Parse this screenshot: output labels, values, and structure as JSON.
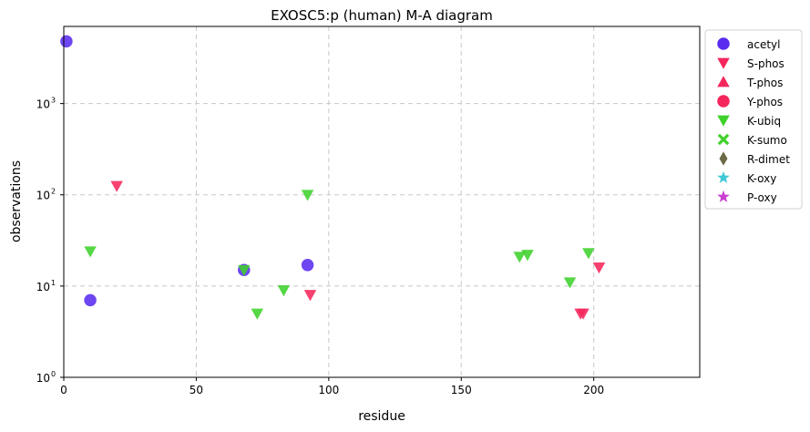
{
  "chart_data": {
    "type": "scatter",
    "title": "EXOSC5:p (human) M-A diagram",
    "xlabel": "residue",
    "ylabel": "observations",
    "xlim": [
      0,
      240
    ],
    "ylim": [
      1,
      7000
    ],
    "yscale": "log",
    "grid": true,
    "legend_position": "outside-top-right",
    "xticks": [
      0,
      50,
      100,
      150,
      200
    ],
    "yticks": [
      {
        "value": 1,
        "label": "10",
        "exp": "0"
      },
      {
        "value": 10,
        "label": "10",
        "exp": "1"
      },
      {
        "value": 100,
        "label": "10",
        "exp": "2"
      },
      {
        "value": 1000,
        "label": "10",
        "exp": "3"
      }
    ],
    "series": [
      {
        "name": "acetyl",
        "marker": "circle",
        "color": "#5a2cf0",
        "points": [
          {
            "x": 1,
            "y": 4800
          },
          {
            "x": 10,
            "y": 7
          },
          {
            "x": 68,
            "y": 15
          },
          {
            "x": 92,
            "y": 17
          }
        ]
      },
      {
        "name": "S-phos",
        "marker": "triangle-down",
        "color": "#f5265c",
        "points": [
          {
            "x": 20,
            "y": 125
          },
          {
            "x": 93,
            "y": 8
          },
          {
            "x": 195,
            "y": 5
          },
          {
            "x": 196,
            "y": 5
          },
          {
            "x": 202,
            "y": 16
          }
        ]
      },
      {
        "name": "T-phos",
        "marker": "triangle-up",
        "color": "#f5265c",
        "points": []
      },
      {
        "name": "Y-phos",
        "marker": "circle",
        "color": "#f5265c",
        "points": []
      },
      {
        "name": "K-ubiq",
        "marker": "triangle-down",
        "color": "#3fd12b",
        "points": [
          {
            "x": 10,
            "y": 24
          },
          {
            "x": 68,
            "y": 15
          },
          {
            "x": 73,
            "y": 5
          },
          {
            "x": 83,
            "y": 9
          },
          {
            "x": 92,
            "y": 100
          },
          {
            "x": 172,
            "y": 21
          },
          {
            "x": 175,
            "y": 22
          },
          {
            "x": 191,
            "y": 11
          },
          {
            "x": 198,
            "y": 23
          }
        ]
      },
      {
        "name": "K-sumo",
        "marker": "x-filled",
        "color": "#3fd12b",
        "points": []
      },
      {
        "name": "R-dimet",
        "marker": "thin-diamond",
        "color": "#6b6a45",
        "points": []
      },
      {
        "name": "K-oxy",
        "marker": "star",
        "color": "#3fc8d6",
        "points": []
      },
      {
        "name": "P-oxy",
        "marker": "star",
        "color": "#c93fd1",
        "points": []
      }
    ]
  }
}
